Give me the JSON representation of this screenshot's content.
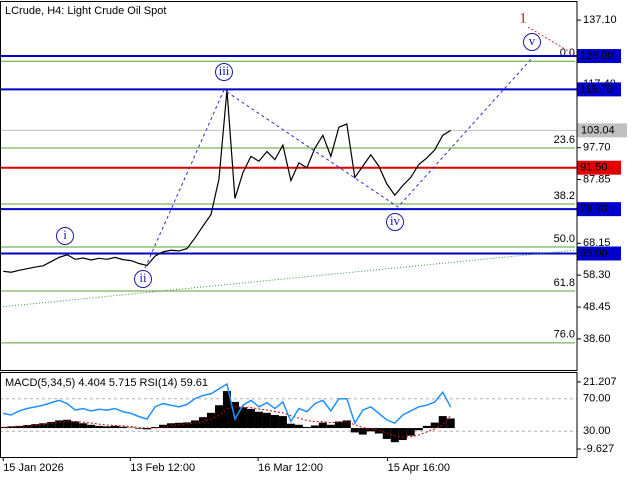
{
  "chart_data": [
    {
      "type": "price",
      "title": "LCrude, H4:  Light Crude Oil Spot",
      "color": "#000000",
      "values": [
        59.5,
        59.2,
        59.8,
        60.3,
        60.8,
        61.2,
        62.5,
        63.8,
        64.6,
        63.2,
        63.6,
        63.0,
        63.5,
        63.2,
        63.8,
        63.1,
        62.8,
        61.9,
        61.3,
        64.2,
        65.5,
        66.0,
        65.8,
        66.5,
        69.8,
        73.5,
        77.0,
        88.0,
        115.5,
        82.0,
        90.0,
        95.0,
        93.5,
        96.5,
        94.0,
        98.5,
        87.5,
        93.0,
        91.5,
        97.5,
        101.5,
        95.0,
        104.0,
        105.0,
        88.5,
        92.0,
        95.5,
        92.0,
        86.5,
        83.0,
        86.0,
        88.5,
        92.5,
        94.5,
        97.0,
        101.5,
        103.04
      ],
      "xlim": [
        -0.4,
        71.8
      ],
      "xticks": [
        {
          "value": 0,
          "label": "15 Jan 2026"
        },
        {
          "value": 15.9,
          "label": "13 Feb 12:00"
        },
        {
          "value": 31.9,
          "label": "16 Mar 12:00"
        },
        {
          "value": 48.1,
          "label": "15 Apr 16:00"
        }
      ],
      "ylim": [
        29,
        142.7
      ],
      "yticks": [
        {
          "value": 137.1,
          "label": "137.10"
        },
        {
          "value": 117.4,
          "label": "117.40"
        },
        {
          "value": 97.7,
          "label": "97.70"
        },
        {
          "value": 87.85,
          "label": "87.85"
        },
        {
          "value": 68.15,
          "label": "68.15"
        },
        {
          "value": 58.3,
          "label": "58.30"
        },
        {
          "value": 48.45,
          "label": "48.45"
        },
        {
          "value": 38.6,
          "label": "38.60"
        }
      ],
      "levels": [
        {
          "value": 126,
          "label": "126.00",
          "color": "#0000cc"
        },
        {
          "value": 115.7,
          "label": "115.70",
          "color": "#0000cc"
        },
        {
          "value": 91.5,
          "label": "91.50",
          "color": "#e00000"
        },
        {
          "value": 78.7,
          "label": "78.70",
          "color": "#0000cc"
        },
        {
          "value": 65,
          "label": "65.00",
          "color": "#0000cc"
        }
      ],
      "last_price": 103.04,
      "fibonacci_color": "#5aa02c",
      "fibonacci": [
        {
          "label": "0.0",
          "value": 124.4
        },
        {
          "label": "23.6",
          "value": 97.6
        },
        {
          "label": "38.2",
          "value": 80.3
        },
        {
          "label": "50.0",
          "value": 67.0
        },
        {
          "label": "61.8",
          "value": 53.4
        },
        {
          "label": "76.0",
          "value": 37.4
        }
      ],
      "wave_labels": [
        "i",
        "ii",
        "iii",
        "iv",
        "v"
      ],
      "degree_label": "1"
    },
    {
      "type": "indicator",
      "title": "MACD(5,34,5) 4.404 5.715 RSI(14) 59.61",
      "histogram_color": "#000000",
      "signal_color": "#cc0000",
      "rsi_color": "#1e90ff",
      "macd_histogram": [
        0.5,
        0.8,
        1.0,
        1.4,
        1.8,
        2.2,
        2.8,
        3.5,
        3.8,
        3.0,
        2.2,
        1.5,
        1.0,
        0.8,
        1.0,
        0.6,
        0.2,
        -0.3,
        -0.6,
        0.5,
        1.5,
        2.2,
        2.4,
        2.6,
        3.5,
        5.0,
        7.0,
        10.5,
        17.0,
        12.0,
        9.5,
        8.8,
        7.5,
        7.0,
        6.0,
        5.5,
        2.0,
        1.5,
        0.5,
        1.2,
        2.5,
        1.5,
        3.0,
        3.5,
        -2.0,
        -3.0,
        -1.5,
        -2.5,
        -5.0,
        -6.5,
        -5.5,
        -3.5,
        -1.0,
        1.0,
        2.5,
        5.5,
        4.404
      ],
      "macd_signal": [
        0.3,
        0.5,
        0.7,
        1.0,
        1.3,
        1.7,
        2.1,
        2.6,
        3.0,
        3.0,
        2.7,
        2.3,
        1.8,
        1.4,
        1.2,
        1.0,
        0.7,
        0.3,
        0.0,
        0.1,
        0.5,
        1.0,
        1.5,
        1.9,
        2.4,
        3.1,
        4.1,
        5.8,
        8.8,
        9.8,
        9.7,
        9.4,
        8.8,
        8.3,
        7.6,
        7.0,
        5.6,
        4.6,
        3.5,
        3.0,
        2.9,
        2.5,
        2.7,
        3.0,
        1.5,
        0.2,
        -0.3,
        -1.0,
        -2.2,
        -3.5,
        -4.2,
        -4.0,
        -3.2,
        -1.8,
        -0.4,
        1.6,
        5.715
      ],
      "rsi": [
        52,
        50,
        55,
        58,
        60,
        62,
        65,
        68,
        64,
        56,
        58,
        55,
        57,
        56,
        58,
        54,
        52,
        48,
        45,
        60,
        64,
        62,
        60,
        63,
        70,
        74,
        76,
        82,
        88,
        45,
        62,
        68,
        60,
        65,
        58,
        66,
        42,
        58,
        54,
        64,
        68,
        55,
        70,
        70,
        40,
        56,
        60,
        52,
        44,
        40,
        50,
        55,
        60,
        62,
        66,
        78,
        59.61
      ],
      "ylim": [
        -13.3,
        25.3
      ],
      "yticks": [
        21.207,
        -9.627
      ],
      "y2lim": [
        -1.5,
        101.5
      ],
      "y2ticks": [
        {
          "value": 70,
          "label": "70.00"
        },
        {
          "value": 30,
          "label": "30.00"
        }
      ]
    }
  ]
}
